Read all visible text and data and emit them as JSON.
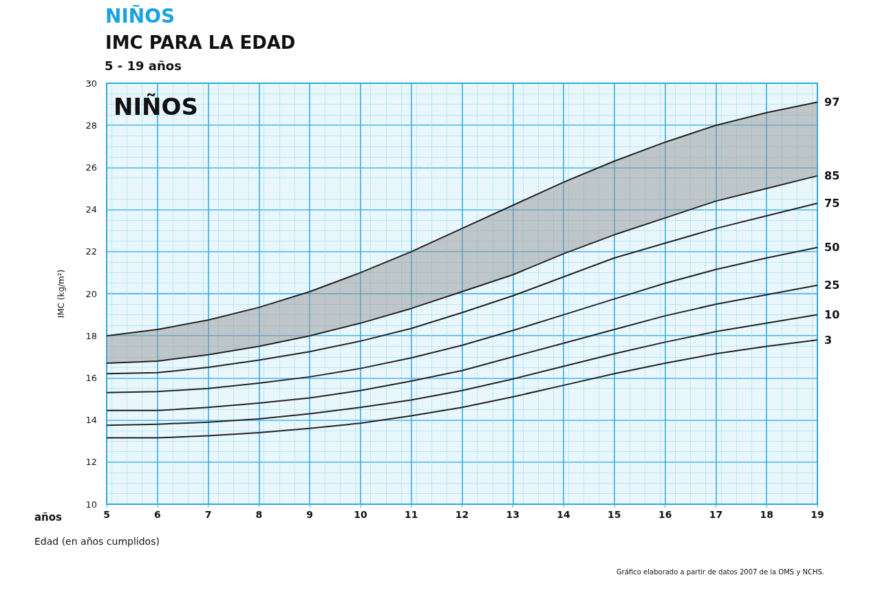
{
  "chart_data": {
    "type": "line",
    "title": "NIÑOS",
    "subtitle": "IMC PARA LA EDAD",
    "xlabel": "Edad (en años cumplidos)",
    "ylabel": "IMC (kg/m²)",
    "annotations": [
      "5 - 19 años",
      "NIÑOS",
      "años",
      "Gráfico elaborado a partir de datos 2007 de la OMS y NCHS."
    ],
    "x": [
      5,
      6,
      7,
      8,
      9,
      10,
      11,
      12,
      13,
      14,
      15,
      16,
      17,
      18,
      19
    ],
    "series": [
      {
        "name": "97",
        "color": "#222222",
        "values": [
          18.0,
          18.3,
          18.75,
          19.35,
          20.1,
          21.0,
          22.0,
          23.1,
          24.2,
          25.3,
          26.3,
          27.2,
          28.0,
          28.6,
          29.1
        ],
        "lower": [
          16.7,
          16.8,
          17.1,
          17.5,
          18.0,
          18.6,
          19.3,
          20.1,
          20.9,
          21.9,
          22.8,
          23.6,
          24.4,
          25.0,
          25.6
        ],
        "upper": [
          18.0,
          18.3,
          18.75,
          19.35,
          20.1,
          21.0,
          22.0,
          23.1,
          24.2,
          25.3,
          26.3,
          27.2,
          28.0,
          28.6,
          29.1
        ]
      },
      {
        "name": "85",
        "color": "#222222",
        "values": [
          16.7,
          16.8,
          17.1,
          17.5,
          18.0,
          18.6,
          19.3,
          20.1,
          20.9,
          21.9,
          22.8,
          23.6,
          24.4,
          25.0,
          25.6
        ]
      },
      {
        "name": "75",
        "color": "#222222",
        "values": [
          16.2,
          16.25,
          16.5,
          16.85,
          17.25,
          17.75,
          18.35,
          19.1,
          19.9,
          20.8,
          21.7,
          22.4,
          23.1,
          23.7,
          24.3
        ]
      },
      {
        "name": "50",
        "color": "#222222",
        "values": [
          15.3,
          15.35,
          15.5,
          15.75,
          16.05,
          16.45,
          16.95,
          17.55,
          18.25,
          19.0,
          19.75,
          20.5,
          21.15,
          21.7,
          22.2
        ]
      },
      {
        "name": "25",
        "color": "#222222",
        "values": [
          14.45,
          14.45,
          14.6,
          14.8,
          15.05,
          15.4,
          15.85,
          16.35,
          17.0,
          17.65,
          18.3,
          18.95,
          19.5,
          19.95,
          20.4
        ]
      },
      {
        "name": "10",
        "color": "#222222",
        "values": [
          13.75,
          13.8,
          13.9,
          14.05,
          14.3,
          14.6,
          14.95,
          15.4,
          15.95,
          16.55,
          17.15,
          17.7,
          18.2,
          18.6,
          19.0
        ]
      },
      {
        "name": "3",
        "color": "#222222",
        "values": [
          13.15,
          13.15,
          13.25,
          13.4,
          13.6,
          13.85,
          14.2,
          14.6,
          15.1,
          15.65,
          16.2,
          16.7,
          17.15,
          17.5,
          17.8
        ]
      }
    ],
    "xlim": [
      5,
      19
    ],
    "xticks": [
      5,
      6,
      7,
      8,
      9,
      10,
      11,
      12,
      13,
      14,
      15,
      16,
      17,
      18,
      19
    ],
    "ylim": [
      10,
      30
    ],
    "yticks": [
      10,
      12,
      14,
      16,
      18,
      20,
      22,
      24,
      26,
      28,
      30
    ],
    "grid": true,
    "legend": false,
    "marker": "none",
    "line_style": "solid"
  }
}
